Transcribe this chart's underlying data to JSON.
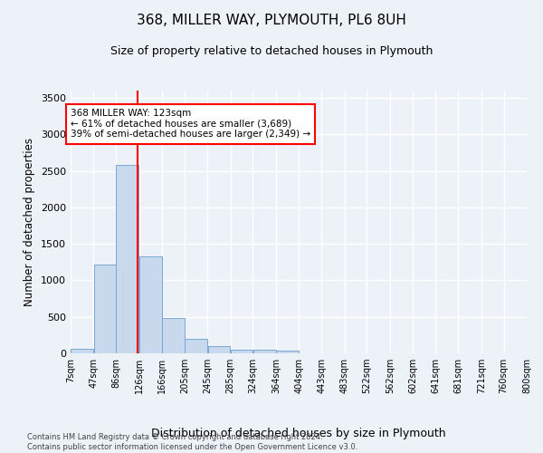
{
  "title": "368, MILLER WAY, PLYMOUTH, PL6 8UH",
  "subtitle": "Size of property relative to detached houses in Plymouth",
  "xlabel": "Distribution of detached houses by size in Plymouth",
  "ylabel": "Number of detached properties",
  "bar_color": "#c8d9ed",
  "bar_edge_color": "#7aa8d2",
  "vline_x": 123,
  "vline_color": "red",
  "annotation_title": "368 MILLER WAY: 123sqm",
  "annotation_line1": "← 61% of detached houses are smaller (3,689)",
  "annotation_line2": "39% of semi-detached houses are larger (2,349) →",
  "bins": [
    7,
    47,
    86,
    126,
    166,
    205,
    245,
    285,
    324,
    364,
    404,
    443,
    483,
    522,
    562,
    602,
    641,
    681,
    721,
    760,
    800
  ],
  "bar_heights": [
    60,
    1220,
    2580,
    1330,
    490,
    195,
    105,
    50,
    50,
    35,
    0,
    0,
    0,
    0,
    0,
    0,
    0,
    0,
    0,
    0
  ],
  "ylim": [
    0,
    3600
  ],
  "yticks": [
    0,
    500,
    1000,
    1500,
    2000,
    2500,
    3000,
    3500
  ],
  "tick_labels": [
    "7sqm",
    "47sqm",
    "86sqm",
    "126sqm",
    "166sqm",
    "205sqm",
    "245sqm",
    "285sqm",
    "324sqm",
    "364sqm",
    "404sqm",
    "443sqm",
    "483sqm",
    "522sqm",
    "562sqm",
    "602sqm",
    "641sqm",
    "681sqm",
    "721sqm",
    "760sqm",
    "800sqm"
  ],
  "footer_line1": "Contains HM Land Registry data © Crown copyright and database right 2024.",
  "footer_line2": "Contains public sector information licensed under the Open Government Licence v3.0.",
  "background_color": "#edf1f8",
  "plot_bg_color": "#edf1f8",
  "grid_color": "#ffffff",
  "figsize": [
    6.0,
    5.0
  ],
  "dpi": 100
}
